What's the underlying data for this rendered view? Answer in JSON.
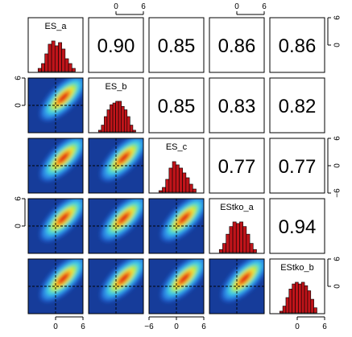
{
  "chart_data": {
    "type": "scatter-matrix",
    "variables": [
      "ES_a",
      "ES_b",
      "ES_c",
      "EStko_a",
      "EStko_b"
    ],
    "correlations": [
      {
        "row": 0,
        "col": 1,
        "value": "0.90"
      },
      {
        "row": 0,
        "col": 2,
        "value": "0.85"
      },
      {
        "row": 0,
        "col": 3,
        "value": "0.86"
      },
      {
        "row": 0,
        "col": 4,
        "value": "0.86"
      },
      {
        "row": 1,
        "col": 2,
        "value": "0.85"
      },
      {
        "row": 1,
        "col": 3,
        "value": "0.83"
      },
      {
        "row": 1,
        "col": 4,
        "value": "0.82"
      },
      {
        "row": 2,
        "col": 3,
        "value": "0.77"
      },
      {
        "row": 2,
        "col": 4,
        "value": "0.77"
      },
      {
        "row": 3,
        "col": 4,
        "value": "0.94"
      }
    ],
    "axis_range": [
      -6,
      6
    ],
    "top_axis_ticks": [
      "0",
      "6"
    ],
    "bottom_axis_ticks": {
      "col0": [
        "0",
        "6"
      ],
      "col2": [
        "−6",
        "0",
        "6"
      ],
      "col4": [
        "0",
        "6"
      ]
    },
    "left_axis_ticks": {
      "row1": [
        "6",
        "0"
      ],
      "row3": [
        "6",
        "0"
      ]
    },
    "right_axis_ticks": {
      "row0": [
        "6",
        "0"
      ],
      "row2": [
        "6",
        "0",
        "−6"
      ],
      "row4": [
        "6",
        "0"
      ]
    },
    "histograms": [
      [
        2,
        5,
        11,
        17,
        19,
        16,
        18,
        14,
        8,
        5,
        2
      ],
      [
        1,
        4,
        9,
        13,
        16,
        17,
        18,
        18,
        15,
        13,
        9,
        4,
        1
      ],
      [
        1,
        3,
        8,
        15,
        19,
        17,
        15,
        12,
        9,
        5,
        2
      ],
      [
        2,
        6,
        12,
        17,
        20,
        19,
        20,
        17,
        12,
        6,
        2
      ],
      [
        1,
        4,
        9,
        14,
        17,
        18,
        17,
        18,
        16,
        13,
        8,
        3
      ]
    ],
    "colors": {
      "bar_fill": "#c0141a",
      "density_bg": "#163c9a",
      "density_high": "#e21a10",
      "reference_line": "#000000"
    }
  }
}
